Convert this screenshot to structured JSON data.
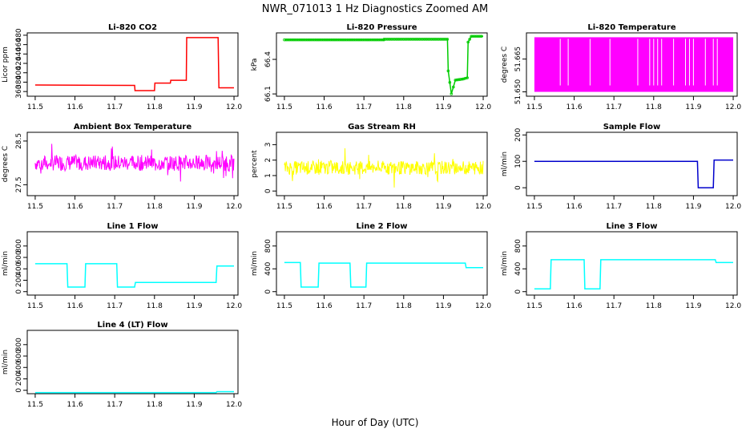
{
  "figure": {
    "title": "NWR_071013  1 Hz Diagnostics Zoomed AM",
    "xlabel": "Hour of Day (UTC)"
  },
  "chart_data": [
    {
      "type": "line",
      "title": "Li-820 CO2",
      "ylabel": "Licor ppm",
      "color": "#ff0000",
      "x_ticks": [
        "11.5",
        "11.6",
        "11.7",
        "11.8",
        "11.9",
        "12.0"
      ],
      "xlim": [
        11.48,
        12.01
      ],
      "y_ticks": [
        360,
        380,
        400,
        420,
        440,
        460,
        480
      ],
      "ylim": [
        350,
        485
      ],
      "series": [
        {
          "x": [
            11.5,
            11.75,
            11.751,
            11.8,
            11.801,
            11.84,
            11.841,
            11.88,
            11.881,
            11.96,
            11.962,
            12.0
          ],
          "values": [
            374,
            373,
            362,
            362,
            378,
            378,
            384,
            384,
            475,
            475,
            368,
            368
          ]
        }
      ]
    },
    {
      "type": "line",
      "title": "Li-820 Pressure",
      "ylabel": "kPa",
      "color": "#00cc00",
      "marker": "o",
      "x_ticks": [
        "11.5",
        "11.6",
        "11.7",
        "11.8",
        "11.9",
        "12.0"
      ],
      "xlim": [
        11.48,
        12.01
      ],
      "y_ticks": [
        "66.1",
        "66.4"
      ],
      "ytick_values": [
        66.1,
        66.4
      ],
      "ylim": [
        66.08,
        66.63
      ],
      "series": [
        {
          "x": [
            11.5,
            11.75,
            11.751,
            11.91,
            11.912,
            11.92,
            11.93,
            11.95,
            11.96,
            11.962,
            11.97,
            12.0
          ],
          "values": [
            66.57,
            66.57,
            66.575,
            66.575,
            66.3,
            66.1,
            66.22,
            66.23,
            66.24,
            66.55,
            66.6,
            66.6
          ]
        }
      ]
    },
    {
      "type": "line",
      "title": "Li-820 Temperature",
      "ylabel": "degrees C",
      "color": "#ff00ff",
      "x_ticks": [
        "11.5",
        "11.6",
        "11.7",
        "11.8",
        "11.9",
        "12.0"
      ],
      "xlim": [
        11.48,
        12.01
      ],
      "y_ticks": [
        "51.650",
        "51.665"
      ],
      "ytick_values": [
        51.65,
        51.665
      ],
      "ylim": [
        51.648,
        51.677
      ],
      "series": [
        {
          "x": [
            11.5,
            12.0
          ],
          "values": [
            51.65,
            51.675
          ]
        }
      ],
      "gaps_x": [
        11.565,
        11.585,
        11.64,
        11.69,
        11.76,
        11.79,
        11.8,
        11.81,
        11.82,
        11.85,
        11.88,
        11.89,
        11.9,
        11.93,
        11.95,
        11.96
      ]
    },
    {
      "type": "line",
      "title": "Ambient Box Temperature",
      "ylabel": "degrees C",
      "color": "#ff00ff",
      "x_ticks": [
        "11.5",
        "11.6",
        "11.7",
        "11.8",
        "11.9",
        "12.0"
      ],
      "xlim": [
        11.48,
        12.01
      ],
      "y_ticks": [
        "27.5",
        "28.5"
      ],
      "ytick_values": [
        27.5,
        28.5
      ],
      "ylim": [
        27.25,
        28.7
      ],
      "series": [
        {
          "x": [
            11.5,
            12.0
          ],
          "values": [
            28.0,
            28.0
          ],
          "noise": 0.18
        }
      ]
    },
    {
      "type": "line",
      "title": "Gas Stream RH",
      "ylabel": "percent",
      "color": "#ffff00",
      "x_ticks": [
        "11.5",
        "11.6",
        "11.7",
        "11.8",
        "11.9",
        "12.0"
      ],
      "xlim": [
        11.48,
        12.01
      ],
      "y_ticks": [
        0,
        1,
        2,
        3
      ],
      "ylim": [
        -0.3,
        3.8
      ],
      "series": [
        {
          "x": [
            11.5,
            12.0
          ],
          "values": [
            1.5,
            1.5
          ],
          "noise": 0.45
        }
      ]
    },
    {
      "type": "line",
      "title": "Sample Flow",
      "ylabel": "ml/min",
      "color": "#0000cc",
      "x_ticks": [
        "11.5",
        "11.6",
        "11.7",
        "11.8",
        "11.9",
        "12.0"
      ],
      "xlim": [
        11.48,
        12.01
      ],
      "y_ticks": [
        0,
        100,
        200
      ],
      "ylim": [
        -30,
        210
      ],
      "series": [
        {
          "x": [
            11.5,
            11.91,
            11.912,
            11.95,
            11.952,
            12.0
          ],
          "values": [
            100,
            100,
            0,
            0,
            105,
            105
          ]
        }
      ]
    },
    {
      "type": "line",
      "title": "Line 1 Flow",
      "ylabel": "ml/min",
      "color": "#00ffff",
      "x_ticks": [
        "11.5",
        "11.6",
        "11.7",
        "11.8",
        "11.9",
        "12.0"
      ],
      "xlim": [
        11.48,
        12.01
      ],
      "y_ticks": [
        0,
        200,
        400,
        600,
        800
      ],
      "ylim": [
        -60,
        1050
      ],
      "series": [
        {
          "x": [
            11.5,
            11.58,
            11.582,
            11.625,
            11.627,
            11.705,
            11.707,
            11.75,
            11.752,
            11.955,
            11.957,
            12.0
          ],
          "values": [
            490,
            490,
            80,
            80,
            490,
            490,
            80,
            80,
            160,
            160,
            450,
            450
          ]
        }
      ]
    },
    {
      "type": "line",
      "title": "Line 2 Flow",
      "ylabel": "ml/min",
      "color": "#00ffff",
      "x_ticks": [
        "11.5",
        "11.6",
        "11.7",
        "11.8",
        "11.9",
        "12.0"
      ],
      "xlim": [
        11.48,
        12.01
      ],
      "y_ticks": [
        0,
        400,
        800
      ],
      "ylim": [
        -60,
        1050
      ],
      "series": [
        {
          "x": [
            11.5,
            11.54,
            11.542,
            11.585,
            11.587,
            11.665,
            11.667,
            11.705,
            11.707,
            11.955,
            11.957,
            12.0
          ],
          "values": [
            510,
            510,
            80,
            80,
            500,
            500,
            80,
            80,
            500,
            500,
            420,
            420
          ]
        }
      ]
    },
    {
      "type": "line",
      "title": "Line 3 Flow",
      "ylabel": "ml/min",
      "color": "#00ffff",
      "x_ticks": [
        "11.5",
        "11.6",
        "11.7",
        "11.8",
        "11.9",
        "12.0"
      ],
      "xlim": [
        11.48,
        12.01
      ],
      "y_ticks": [
        0,
        400,
        800
      ],
      "ylim": [
        -60,
        1050
      ],
      "series": [
        {
          "x": [
            11.5,
            11.54,
            11.542,
            11.625,
            11.627,
            11.665,
            11.667,
            11.955,
            11.957,
            12.0
          ],
          "values": [
            50,
            50,
            560,
            560,
            50,
            50,
            560,
            560,
            510,
            510
          ]
        }
      ]
    },
    {
      "type": "line",
      "title": "Line 4 (LT) Flow",
      "ylabel": "ml/min",
      "color": "#00ffff",
      "x_ticks": [
        "11.5",
        "11.6",
        "11.7",
        "11.8",
        "11.9",
        "12.0"
      ],
      "xlim": [
        11.48,
        12.01
      ],
      "y_ticks": [
        0,
        200,
        400,
        600,
        800
      ],
      "ylim": [
        -60,
        1050
      ],
      "series": [
        {
          "x": [
            11.5,
            11.955,
            11.957,
            12.0
          ],
          "values": [
            -40,
            -40,
            -25,
            -25
          ]
        }
      ]
    }
  ]
}
